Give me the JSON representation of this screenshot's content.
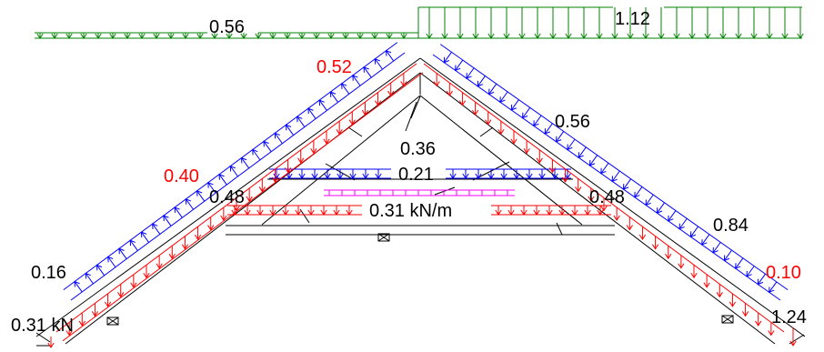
{
  "colors": {
    "structure": "#000000",
    "snow_load": "#008000",
    "wind_load": "#0000ff",
    "dead_load": "#ff0000",
    "ceiling_load": "#ff00ff",
    "label_default": "#000000",
    "label_highlight": "#ff0000"
  },
  "labels": {
    "snow_left": "0.56",
    "snow_right": "1.12",
    "wind_peak_left": "0.52",
    "wind_right_upper": "0.56",
    "collar_load": "0.36",
    "collar_wind": "0.21",
    "wind_left_mid": "0.40",
    "dead_left_mid": "0.48",
    "dead_right_mid": "0.48",
    "tie_load": "0.31 kN/m",
    "wind_right_lower": "0.84",
    "wind_left_lower": "0.16",
    "wind_right_eave": "0.10",
    "point_load_left": "0.31 kN",
    "point_load_right": "1.24"
  }
}
